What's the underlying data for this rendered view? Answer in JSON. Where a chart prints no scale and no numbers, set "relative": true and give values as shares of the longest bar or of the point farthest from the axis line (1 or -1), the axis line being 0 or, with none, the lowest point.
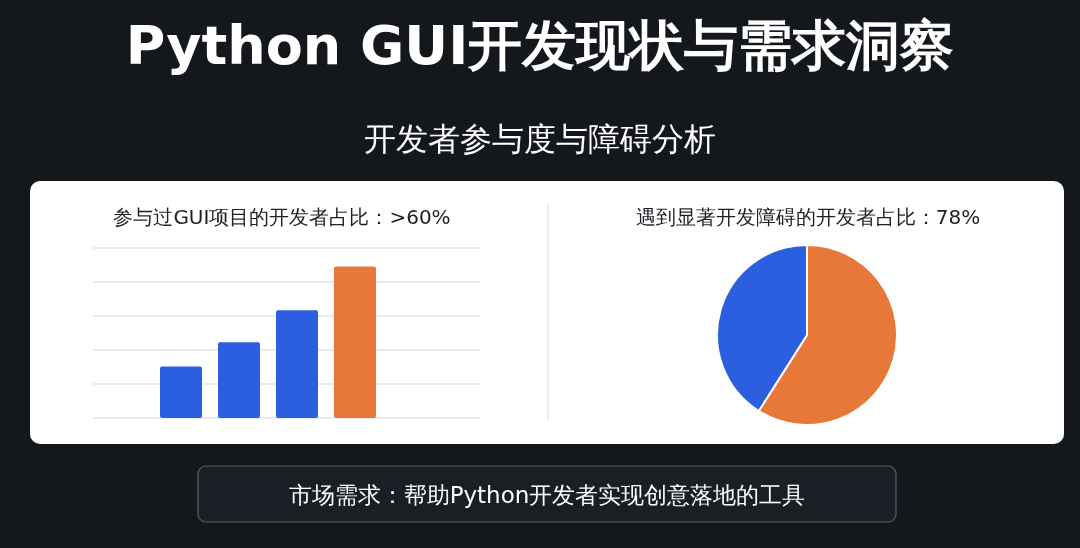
{
  "chart_data": [
    {
      "type": "other",
      "title": "Python GUI开发现状与需求洞察",
      "subtitle": "开发者参与度与障碍分析",
      "annotations": [
        "市场需求：帮助Python开发者实现创意落地的工具"
      ]
    },
    {
      "type": "bar",
      "title": "参与过GUI项目的开发者占比：>60%",
      "categories": [
        null,
        null,
        null,
        null
      ],
      "values": [
        0.34,
        0.5,
        0.71,
        1
      ],
      "colors": [
        "#2b5fe0",
        "#2b5fe0",
        "#2b5fe0",
        "#e8783a"
      ],
      "relative": true,
      "grid": "y"
    },
    {
      "type": "pie",
      "title": "遇到显著开发障碍的开发者占比：78%",
      "categories": [
        null,
        null
      ],
      "values": [
        59,
        41
      ],
      "colors": [
        "#e8783a",
        "#2b5fe0"
      ]
    }
  ]
}
